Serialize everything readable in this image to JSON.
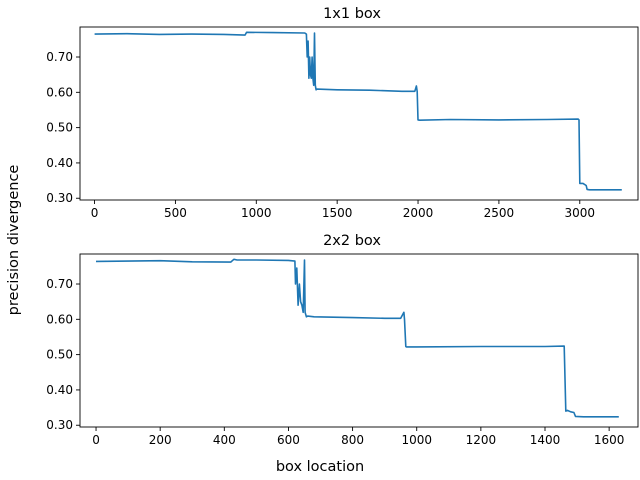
{
  "figure": {
    "common_ylabel": "precision divergence",
    "common_xlabel": "box location"
  },
  "chart_data": [
    {
      "type": "line",
      "title": "1x1 box",
      "xlim": [
        -90,
        3360
      ],
      "ylim": [
        0.295,
        0.785
      ],
      "xticks": [
        0,
        500,
        1000,
        1500,
        2000,
        2500,
        3000
      ],
      "xtick_labels": [
        "0",
        "500",
        "1000",
        "1500",
        "2000",
        "2500",
        "3000"
      ],
      "yticks": [
        0.3,
        0.4,
        0.5,
        0.6,
        0.7
      ],
      "ytick_labels": [
        "0.30",
        "0.40",
        "0.50",
        "0.60",
        "0.70"
      ],
      "color": "#1f77b4",
      "x": [
        0,
        200,
        400,
        600,
        800,
        930,
        940,
        1100,
        1300,
        1310,
        1315,
        1320,
        1325,
        1330,
        1335,
        1340,
        1345,
        1350,
        1355,
        1360,
        1365,
        1370,
        1375,
        1500,
        1700,
        1900,
        1980,
        1990,
        1995,
        2000,
        2010,
        2200,
        2500,
        2800,
        2990,
        2995,
        3000,
        3020,
        3040,
        3045,
        3060,
        3150,
        3260
      ],
      "y": [
        0.765,
        0.766,
        0.764,
        0.765,
        0.764,
        0.762,
        0.77,
        0.769,
        0.768,
        0.765,
        0.7,
        0.745,
        0.64,
        0.7,
        0.65,
        0.64,
        0.7,
        0.64,
        0.62,
        0.768,
        0.62,
        0.607,
        0.609,
        0.607,
        0.606,
        0.603,
        0.603,
        0.618,
        0.602,
        0.522,
        0.521,
        0.523,
        0.522,
        0.523,
        0.524,
        0.522,
        0.342,
        0.342,
        0.336,
        0.325,
        0.324,
        0.324,
        0.324
      ]
    },
    {
      "type": "line",
      "title": "2x2 box",
      "xlim": [
        -50,
        1690
      ],
      "ylim": [
        0.295,
        0.785
      ],
      "xticks": [
        0,
        200,
        400,
        600,
        800,
        1000,
        1200,
        1400,
        1600
      ],
      "xtick_labels": [
        "0",
        "200",
        "400",
        "600",
        "800",
        "1000",
        "1200",
        "1400",
        "1600"
      ],
      "yticks": [
        0.3,
        0.4,
        0.5,
        0.6,
        0.7
      ],
      "ytick_labels": [
        "0.30",
        "0.40",
        "0.50",
        "0.60",
        "0.70"
      ],
      "color": "#1f77b4",
      "x": [
        0,
        100,
        200,
        300,
        420,
        430,
        440,
        500,
        600,
        620,
        622,
        626,
        630,
        634,
        638,
        642,
        646,
        650,
        652,
        656,
        660,
        680,
        800,
        900,
        950,
        960,
        962,
        966,
        968,
        1000,
        1200,
        1400,
        1460,
        1465,
        1470,
        1480,
        1490,
        1495,
        1520,
        1630
      ],
      "y": [
        0.764,
        0.765,
        0.766,
        0.763,
        0.762,
        0.77,
        0.768,
        0.768,
        0.767,
        0.765,
        0.7,
        0.745,
        0.64,
        0.7,
        0.65,
        0.64,
        0.62,
        0.768,
        0.62,
        0.607,
        0.609,
        0.607,
        0.605,
        0.603,
        0.603,
        0.62,
        0.6,
        0.523,
        0.522,
        0.522,
        0.523,
        0.523,
        0.524,
        0.34,
        0.342,
        0.338,
        0.336,
        0.325,
        0.324,
        0.324
      ]
    }
  ]
}
